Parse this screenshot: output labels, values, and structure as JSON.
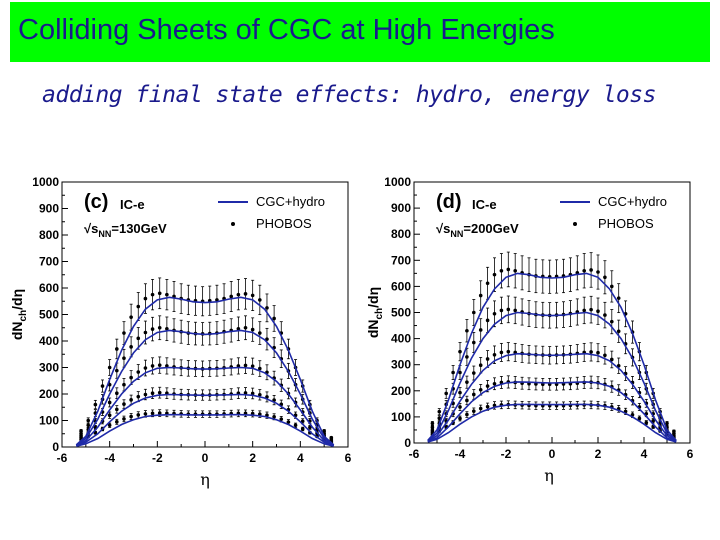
{
  "header": {
    "title": "Colliding Sheets of CGC at High Energies",
    "subtitle": "adding final state effects: hydro, energy loss"
  },
  "colors": {
    "title_bg": "#00ff00",
    "title_text": "#1a1a8c",
    "curve": "#1f2aa8",
    "points": "#000000"
  },
  "chart_data": [
    {
      "type": "line",
      "panel_label": "(c)",
      "model_label": "IC-e",
      "energy_label_prefix": "√s",
      "energy_label_sub": "NN",
      "energy_label_suffix": "=130GeV",
      "legend": [
        "CGC+hydro",
        "PHOBOS"
      ],
      "xlabel": "η",
      "ylabel": "dN_ch/dη",
      "xlim": [
        -6,
        6
      ],
      "ylim": [
        0,
        1000
      ],
      "xticks": [
        -6,
        -4,
        -2,
        0,
        2,
        4,
        6
      ],
      "yticks": [
        0,
        100,
        200,
        300,
        400,
        500,
        600,
        700,
        800,
        900,
        1000
      ],
      "curve_eta": [
        -5.4,
        -5.0,
        -4.5,
        -4.0,
        -3.5,
        -3.0,
        -2.5,
        -2.0,
        -1.5,
        -1.0,
        -0.5,
        0.0,
        0.5,
        1.0,
        1.5,
        2.0,
        2.5,
        3.0,
        3.5,
        4.0,
        4.5,
        5.0,
        5.4
      ],
      "series": [
        {
          "name": "CGC+hydro",
          "values": [
            8,
            40,
            135,
            255,
            365,
            455,
            520,
            555,
            565,
            558,
            548,
            545,
            548,
            558,
            565,
            555,
            520,
            455,
            365,
            255,
            135,
            40,
            8
          ]
        },
        {
          "name": "CGC+hydro",
          "values": [
            6,
            32,
            105,
            200,
            285,
            355,
            405,
            432,
            440,
            435,
            428,
            425,
            428,
            435,
            440,
            432,
            405,
            355,
            285,
            200,
            105,
            32,
            6
          ]
        },
        {
          "name": "CGC+hydro",
          "values": [
            5,
            24,
            75,
            140,
            200,
            248,
            280,
            297,
            300,
            298,
            295,
            294,
            295,
            298,
            300,
            297,
            280,
            248,
            200,
            140,
            75,
            24,
            5
          ]
        },
        {
          "name": "CGC+hydro",
          "values": [
            4,
            18,
            50,
            95,
            135,
            165,
            185,
            195,
            198,
            197,
            196,
            195,
            196,
            197,
            198,
            195,
            185,
            165,
            135,
            95,
            50,
            18,
            4
          ]
        },
        {
          "name": "CGC+hydro",
          "values": [
            3,
            12,
            32,
            60,
            85,
            103,
            115,
            120,
            122,
            122,
            121,
            121,
            121,
            122,
            122,
            120,
            115,
            103,
            85,
            60,
            32,
            12,
            3
          ]
        }
      ],
      "phobos_eta": [
        -5.2,
        -4.9,
        -4.6,
        -4.3,
        -4.0,
        -3.7,
        -3.4,
        -3.1,
        -2.8,
        -2.5,
        -2.2,
        -1.9,
        -1.6,
        -1.3,
        -1.0,
        -0.7,
        -0.4,
        -0.1,
        0.2,
        0.5,
        0.8,
        1.1,
        1.4,
        1.7,
        2.0,
        2.3,
        2.6,
        2.9,
        3.2,
        3.5,
        3.8,
        4.1,
        4.4,
        4.7,
        5.0,
        5.3
      ],
      "phobos_series": [
        {
          "name": "PHOBOS",
          "values": [
            60,
            100,
            160,
            230,
            300,
            370,
            430,
            490,
            530,
            560,
            575,
            580,
            575,
            568,
            560,
            555,
            552,
            550,
            552,
            555,
            560,
            568,
            575,
            578,
            572,
            555,
            525,
            485,
            430,
            370,
            300,
            230,
            160,
            100,
            60,
            35
          ]
        },
        {
          "name": "PHOBOS",
          "values": [
            50,
            82,
            128,
            180,
            235,
            288,
            335,
            378,
            410,
            432,
            445,
            450,
            446,
            440,
            435,
            430,
            428,
            427,
            428,
            430,
            435,
            440,
            446,
            450,
            443,
            430,
            407,
            375,
            333,
            287,
            235,
            180,
            128,
            82,
            50,
            30
          ]
        },
        {
          "name": "PHOBOS",
          "values": [
            42,
            66,
            98,
            132,
            168,
            203,
            235,
            262,
            283,
            298,
            306,
            309,
            306,
            302,
            299,
            297,
            296,
            295,
            296,
            297,
            299,
            302,
            306,
            308,
            305,
            296,
            282,
            260,
            233,
            202,
            168,
            132,
            98,
            66,
            42,
            25
          ]
        },
        {
          "name": "PHOBOS",
          "values": [
            35,
            52,
            74,
            97,
            120,
            142,
            162,
            178,
            190,
            198,
            203,
            205,
            203,
            200,
            198,
            197,
            196,
            196,
            196,
            197,
            198,
            200,
            203,
            204,
            202,
            197,
            189,
            177,
            161,
            141,
            120,
            97,
            74,
            52,
            35,
            20
          ]
        },
        {
          "name": "PHOBOS",
          "values": [
            28,
            40,
            54,
            68,
            82,
            95,
            106,
            115,
            121,
            125,
            127,
            128,
            127,
            126,
            125,
            124,
            124,
            124,
            124,
            124,
            125,
            126,
            127,
            127,
            126,
            124,
            120,
            114,
            105,
            94,
            82,
            68,
            54,
            40,
            28,
            16
          ]
        }
      ]
    },
    {
      "type": "line",
      "panel_label": "(d)",
      "model_label": "IC-e",
      "energy_label_prefix": "√s",
      "energy_label_sub": "NN",
      "energy_label_suffix": "=200GeV",
      "legend": [
        "CGC+hydro",
        "PHOBOS"
      ],
      "xlabel": "η",
      "ylabel": "dN_ch/dη",
      "xlim": [
        -6,
        6
      ],
      "ylim": [
        0,
        1000
      ],
      "xticks": [
        -6,
        -4,
        -2,
        0,
        2,
        4,
        6
      ],
      "yticks": [
        0,
        100,
        200,
        300,
        400,
        500,
        600,
        700,
        800,
        900,
        1000
      ],
      "curve_eta": [
        -5.4,
        -5.0,
        -4.5,
        -4.0,
        -3.5,
        -3.0,
        -2.5,
        -2.0,
        -1.5,
        -1.0,
        -0.5,
        0.0,
        0.5,
        1.0,
        1.5,
        2.0,
        2.5,
        3.0,
        3.5,
        4.0,
        4.5,
        5.0,
        5.4
      ],
      "series": [
        {
          "name": "CGC+hydro",
          "values": [
            10,
            50,
            165,
            300,
            420,
            520,
            590,
            635,
            650,
            645,
            635,
            632,
            635,
            645,
            650,
            635,
            590,
            520,
            420,
            300,
            165,
            50,
            10
          ]
        },
        {
          "name": "CGC+hydro",
          "values": [
            8,
            38,
            125,
            230,
            325,
            400,
            455,
            488,
            500,
            496,
            490,
            488,
            490,
            496,
            500,
            488,
            455,
            400,
            325,
            230,
            125,
            38,
            8
          ]
        },
        {
          "name": "CGC+hydro",
          "values": [
            6,
            28,
            88,
            160,
            225,
            278,
            315,
            335,
            342,
            340,
            337,
            336,
            337,
            340,
            342,
            335,
            315,
            278,
            225,
            160,
            88,
            28,
            6
          ]
        },
        {
          "name": "CGC+hydro",
          "values": [
            5,
            20,
            62,
            112,
            158,
            193,
            217,
            230,
            234,
            233,
            231,
            230,
            231,
            233,
            234,
            230,
            217,
            193,
            158,
            112,
            62,
            20,
            5
          ]
        },
        {
          "name": "CGC+hydro",
          "values": [
            4,
            14,
            40,
            72,
            100,
            122,
            137,
            145,
            148,
            148,
            147,
            147,
            147,
            148,
            148,
            145,
            137,
            122,
            100,
            72,
            40,
            14,
            4
          ]
        }
      ],
      "phobos_eta": [
        -5.2,
        -4.9,
        -4.6,
        -4.3,
        -4.0,
        -3.7,
        -3.4,
        -3.1,
        -2.8,
        -2.5,
        -2.2,
        -1.9,
        -1.6,
        -1.3,
        -1.0,
        -0.7,
        -0.4,
        -0.1,
        0.2,
        0.5,
        0.8,
        1.1,
        1.4,
        1.7,
        2.0,
        2.3,
        2.6,
        2.9,
        3.2,
        3.5,
        3.8,
        4.1,
        4.4,
        4.7,
        5.0,
        5.3
      ],
      "phobos_series": [
        {
          "name": "PHOBOS",
          "values": [
            75,
            120,
            190,
            270,
            350,
            430,
            500,
            565,
            612,
            645,
            660,
            665,
            660,
            652,
            645,
            640,
            638,
            637,
            638,
            640,
            645,
            652,
            660,
            663,
            655,
            635,
            600,
            555,
            495,
            425,
            350,
            270,
            190,
            120,
            75,
            45
          ]
        },
        {
          "name": "PHOBOS",
          "values": [
            60,
            95,
            148,
            208,
            270,
            330,
            385,
            433,
            470,
            495,
            508,
            512,
            508,
            502,
            496,
            492,
            490,
            489,
            490,
            492,
            496,
            502,
            508,
            511,
            505,
            490,
            465,
            428,
            380,
            328,
            270,
            208,
            148,
            95,
            60,
            36
          ]
        },
        {
          "name": "PHOBOS",
          "values": [
            48,
            75,
            112,
            152,
            193,
            233,
            268,
            298,
            322,
            338,
            347,
            350,
            347,
            343,
            340,
            338,
            337,
            336,
            337,
            338,
            340,
            343,
            347,
            349,
            346,
            336,
            320,
            296,
            266,
            232,
            193,
            152,
            112,
            75,
            48,
            28
          ]
        },
        {
          "name": "PHOBOS",
          "values": [
            40,
            60,
            85,
            112,
            138,
            163,
            186,
            204,
            218,
            227,
            232,
            234,
            232,
            229,
            227,
            226,
            225,
            225,
            225,
            226,
            227,
            229,
            232,
            233,
            231,
            225,
            216,
            203,
            185,
            162,
            138,
            112,
            85,
            60,
            40,
            23
          ]
        },
        {
          "name": "PHOBOS",
          "values": [
            32,
            46,
            62,
            78,
            94,
            109,
            122,
            132,
            139,
            144,
            146,
            147,
            146,
            145,
            144,
            143,
            143,
            143,
            143,
            143,
            144,
            145,
            146,
            146,
            145,
            143,
            138,
            131,
            121,
            108,
            94,
            78,
            62,
            46,
            32,
            18
          ]
        }
      ]
    }
  ]
}
